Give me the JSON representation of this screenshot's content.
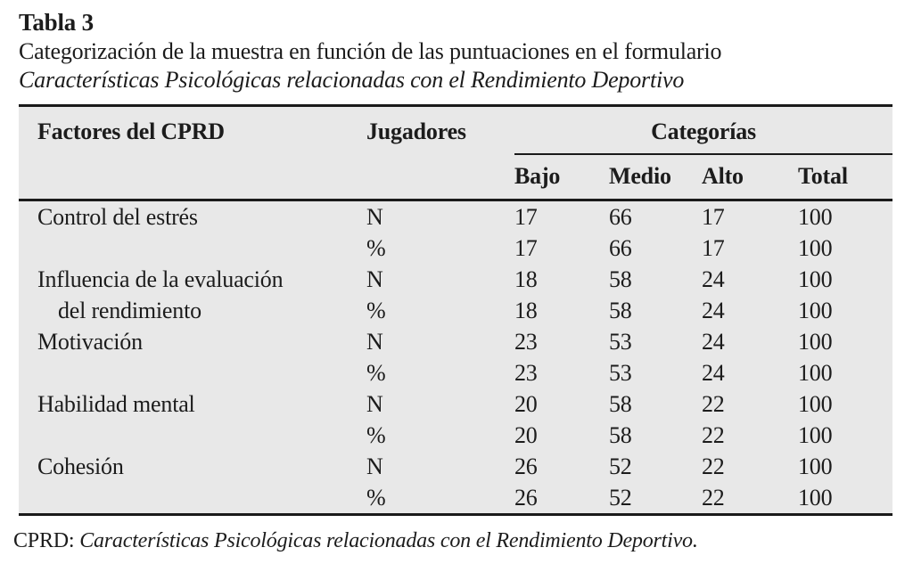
{
  "colors": {
    "table_background": "#e8e8e8",
    "rule": "#1a1a1a",
    "text": "#1c1c1c"
  },
  "heading": {
    "label": "Tabla 3",
    "caption": "Categorización de la muestra en función de las puntuaciones en el formulario",
    "caption_italic": "Características Psicológicas relacionadas con el Rendimiento Deportivo"
  },
  "table": {
    "header": {
      "factors": "Factores del CPRD",
      "players": "Jugadores",
      "categories_group": "Categorías",
      "categories": [
        "Bajo",
        "Medio",
        "Alto",
        "Total"
      ]
    },
    "rows": [
      {
        "label": "Control del estrés",
        "stat": "N",
        "values": [
          "17",
          "66",
          "17",
          "100"
        ]
      },
      {
        "label": "",
        "stat": "%",
        "values": [
          "17",
          "66",
          "17",
          "100"
        ]
      },
      {
        "label": "Influencia de la evaluación",
        "stat": "N",
        "values": [
          "18",
          "58",
          "24",
          "100"
        ]
      },
      {
        "label": "del rendimiento",
        "stat": "%",
        "values": [
          "18",
          "58",
          "24",
          "100"
        ]
      },
      {
        "label": "Motivación",
        "stat": "N",
        "values": [
          "23",
          "53",
          "24",
          "100"
        ]
      },
      {
        "label": "",
        "stat": "%",
        "values": [
          "23",
          "53",
          "24",
          "100"
        ]
      },
      {
        "label": "Habilidad mental",
        "stat": "N",
        "values": [
          "20",
          "58",
          "22",
          "100"
        ]
      },
      {
        "label": "",
        "stat": "%",
        "values": [
          "20",
          "58",
          "22",
          "100"
        ]
      },
      {
        "label": "Cohesión",
        "stat": "N",
        "values": [
          "26",
          "52",
          "22",
          "100"
        ]
      },
      {
        "label": "",
        "stat": "%",
        "values": [
          "26",
          "52",
          "22",
          "100"
        ]
      }
    ]
  },
  "footnote": {
    "abbr": "CPRD:",
    "text": "Características Psicológicas relacionadas con el Rendimiento Deportivo."
  }
}
